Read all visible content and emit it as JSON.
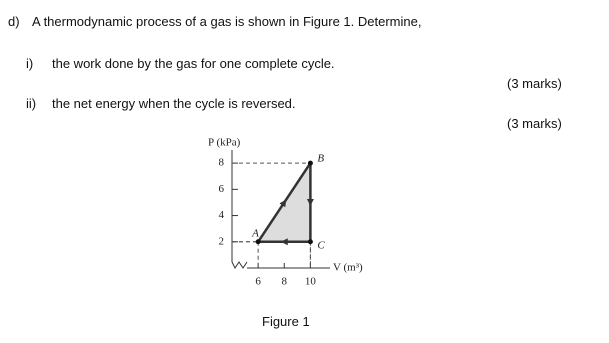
{
  "question": {
    "label": "d)",
    "text": "A thermodynamic process of a gas is shown in Figure 1. Determine,",
    "parts": [
      {
        "label": "i)",
        "text": "the work done by the gas for one complete cycle.",
        "marks": "(3 marks)"
      },
      {
        "label": "ii)",
        "text": "the net energy when the cycle is reversed.",
        "marks": "(3 marks)"
      }
    ]
  },
  "figure": {
    "type": "line",
    "caption": "Figure 1",
    "ylabel": "P (kPa)",
    "xlabel": "V (m³)",
    "xlim": [
      4,
      11.5
    ],
    "ylim": [
      0,
      9
    ],
    "xticks": [
      6,
      8,
      10
    ],
    "yticks": [
      2,
      4,
      6,
      8
    ],
    "points": [
      {
        "label": "A",
        "x": 6,
        "y": 2
      },
      {
        "label": "B",
        "x": 10,
        "y": 8
      },
      {
        "label": "C",
        "x": 10,
        "y": 2
      }
    ]
  }
}
